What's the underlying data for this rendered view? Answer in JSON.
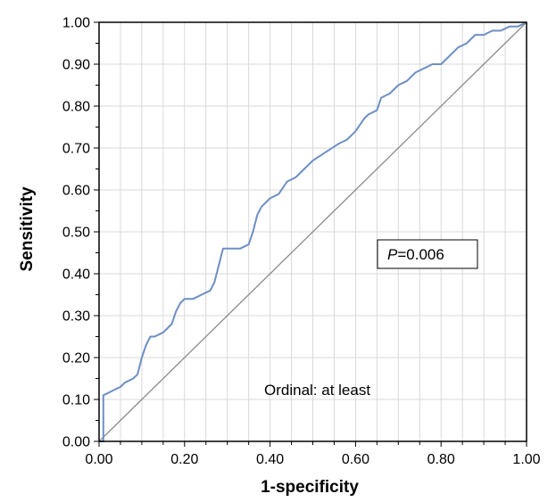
{
  "chart_data": {
    "type": "line",
    "title": "",
    "xlabel": "1-specificity",
    "ylabel": "Sensitivity",
    "xlim": [
      0,
      1
    ],
    "ylim": [
      0,
      1
    ],
    "x_ticks": [
      "0.00",
      "0.20",
      "0.40",
      "0.60",
      "0.80",
      "1.00"
    ],
    "y_ticks": [
      "0.00",
      "0.10",
      "0.20",
      "0.30",
      "0.40",
      "0.50",
      "0.60",
      "0.70",
      "0.80",
      "0.90",
      "1.00"
    ],
    "grid": true,
    "colors": {
      "roc": "#6d8fc4",
      "diagonal": "#8c8c8c",
      "grid": "#d9d9d9"
    },
    "series": [
      {
        "name": "",
        "role": "roc-curve",
        "x": [
          0.0,
          0.01,
          0.01,
          0.03,
          0.05,
          0.06,
          0.08,
          0.09,
          0.1,
          0.11,
          0.12,
          0.13,
          0.15,
          0.16,
          0.17,
          0.18,
          0.19,
          0.2,
          0.22,
          0.24,
          0.26,
          0.27,
          0.28,
          0.29,
          0.3,
          0.33,
          0.35,
          0.36,
          0.37,
          0.38,
          0.4,
          0.42,
          0.44,
          0.46,
          0.48,
          0.5,
          0.53,
          0.56,
          0.58,
          0.6,
          0.62,
          0.63,
          0.65,
          0.66,
          0.68,
          0.7,
          0.72,
          0.74,
          0.76,
          0.78,
          0.8,
          0.82,
          0.84,
          0.86,
          0.88,
          0.9,
          0.92,
          0.94,
          0.96,
          0.98,
          1.0
        ],
        "y": [
          0.0,
          0.0,
          0.11,
          0.12,
          0.13,
          0.14,
          0.15,
          0.16,
          0.2,
          0.23,
          0.25,
          0.25,
          0.26,
          0.27,
          0.28,
          0.31,
          0.33,
          0.34,
          0.34,
          0.35,
          0.36,
          0.38,
          0.42,
          0.46,
          0.46,
          0.46,
          0.47,
          0.5,
          0.54,
          0.56,
          0.58,
          0.59,
          0.62,
          0.63,
          0.65,
          0.67,
          0.69,
          0.71,
          0.72,
          0.74,
          0.77,
          0.78,
          0.79,
          0.82,
          0.83,
          0.85,
          0.86,
          0.88,
          0.89,
          0.9,
          0.9,
          0.92,
          0.94,
          0.95,
          0.97,
          0.97,
          0.98,
          0.98,
          0.99,
          0.99,
          1.0
        ]
      },
      {
        "name": "",
        "role": "reference-diagonal",
        "x": [
          0,
          1
        ],
        "y": [
          0,
          1
        ]
      }
    ],
    "annotations": {
      "p_value_italic": "P",
      "p_value_rest": "=0.006",
      "subset_label": "Ordinal: at least"
    }
  }
}
